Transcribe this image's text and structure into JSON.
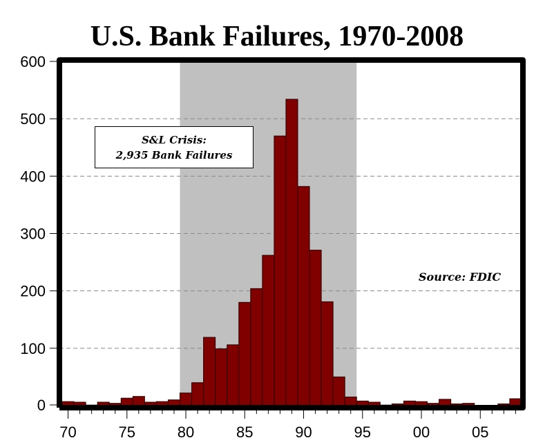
{
  "chart_data": {
    "type": "bar",
    "title": "U.S. Bank Failures, 1970-2008",
    "xlabel": "",
    "ylabel": "",
    "ylim": [
      0,
      600
    ],
    "yticks": [
      0,
      100,
      200,
      300,
      400,
      500,
      600
    ],
    "xtick_labels": [
      "70",
      "75",
      "80",
      "85",
      "90",
      "95",
      "00",
      "05"
    ],
    "xtick_years": [
      1970,
      1975,
      1980,
      1985,
      1990,
      1995,
      2000,
      2005
    ],
    "grid": "horizontal dashed",
    "categories": [
      1970,
      1971,
      1972,
      1973,
      1974,
      1975,
      1976,
      1977,
      1978,
      1979,
      1980,
      1981,
      1982,
      1983,
      1984,
      1985,
      1986,
      1987,
      1988,
      1989,
      1990,
      1991,
      1992,
      1993,
      1994,
      1995,
      1996,
      1997,
      1998,
      1999,
      2000,
      2001,
      2002,
      2003,
      2004,
      2005,
      2006,
      2007,
      2008
    ],
    "values": [
      7,
      6,
      1,
      6,
      4,
      13,
      16,
      6,
      7,
      10,
      22,
      40,
      119,
      99,
      106,
      180,
      204,
      262,
      470,
      534,
      382,
      271,
      181,
      50,
      15,
      8,
      6,
      1,
      3,
      8,
      7,
      4,
      11,
      3,
      4,
      0,
      0,
      3,
      12
    ],
    "shaded_region": {
      "start": 1979.5,
      "end": 1994.5,
      "label": "S&L Crisis"
    },
    "annotations": [
      {
        "text": "S&L Crisis:",
        "line": 1
      },
      {
        "text": "2,935 Bank Failures",
        "line": 2
      },
      {
        "text": "Source: FDIC"
      }
    ],
    "colors": {
      "bar": "#800000",
      "bar_edge": "#2a0000",
      "shade": "#c0c0c0",
      "grid": "#888888",
      "frame": "#000000"
    }
  },
  "annotation": {
    "line1": "S&L Crisis:",
    "line2": "2,935 Bank Failures"
  },
  "source": "Source: FDIC"
}
